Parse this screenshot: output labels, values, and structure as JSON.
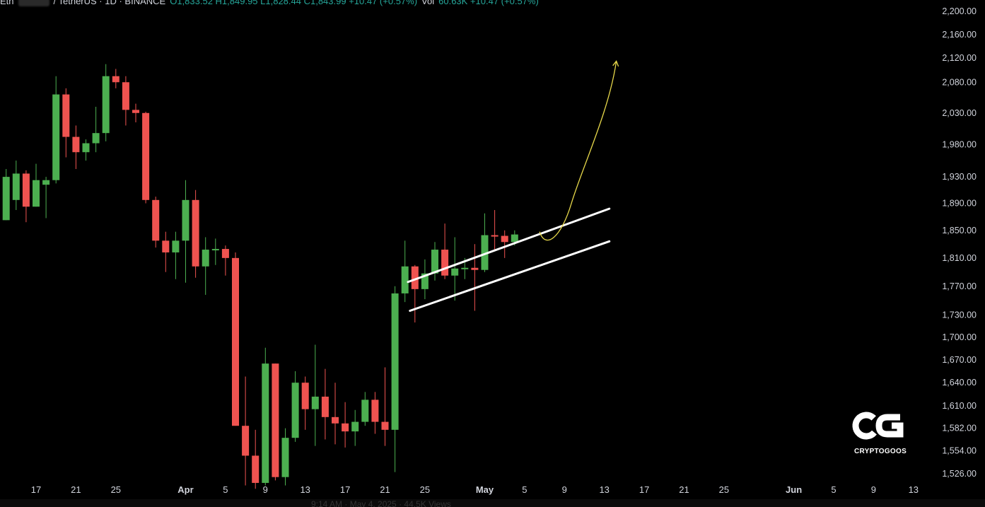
{
  "header": {
    "pair_prefix": "Eth",
    "pair_rest": "/ TetherUS · 1D · BINANCE",
    "ohlc_text": "O1,833.52  H1,849.95  L1,828.44  C1,843.99  +10.47 (+0.57%)",
    "vol_label": "Vol",
    "vol_text": "60.63K  +10.47 (+0.57%)"
  },
  "logo": {
    "brand": "CRYPTOGOOS",
    "mark": "CG"
  },
  "footer": {
    "text": "9:14 AM · May 4, 2025 · 44.5K Views"
  },
  "colors": {
    "up": "#4caf50",
    "down": "#ef5350",
    "channel": "#ffffff",
    "projection": "#e6d74a",
    "axis_text": "#d1d4dc",
    "background": "#000000"
  },
  "chart_data": {
    "type": "candlestick",
    "title": "",
    "xlabel": "",
    "ylabel": "",
    "ylim": [
      1500,
      2210
    ],
    "y_scale": "log",
    "grid": false,
    "y_ticks": [
      "2,200.00",
      "2,160.00",
      "2,120.00",
      "2,080.00",
      "2,030.00",
      "1,980.00",
      "1,930.00",
      "1,890.00",
      "1,850.00",
      "1,810.00",
      "1,770.00",
      "1,730.00",
      "1,700.00",
      "1,670.00",
      "1,640.00",
      "1,610.00",
      "1,582.00",
      "1,554.00",
      "1,526.00"
    ],
    "x_ticks": [
      {
        "label": "17",
        "day": 0
      },
      {
        "label": "21",
        "day": 4
      },
      {
        "label": "25",
        "day": 8
      },
      {
        "label": "Apr",
        "day": 15
      },
      {
        "label": "5",
        "day": 19
      },
      {
        "label": "9",
        "day": 23
      },
      {
        "label": "13",
        "day": 27
      },
      {
        "label": "17",
        "day": 31
      },
      {
        "label": "21",
        "day": 35
      },
      {
        "label": "25",
        "day": 39
      },
      {
        "label": "May",
        "day": 45
      },
      {
        "label": "5",
        "day": 49
      },
      {
        "label": "9",
        "day": 53
      },
      {
        "label": "13",
        "day": 57
      },
      {
        "label": "17",
        "day": 61
      },
      {
        "label": "21",
        "day": 65
      },
      {
        "label": "25",
        "day": 69
      },
      {
        "label": "Jun",
        "day": 76
      },
      {
        "label": "5",
        "day": 80
      },
      {
        "label": "9",
        "day": 84
      },
      {
        "label": "13",
        "day": 88
      }
    ],
    "candles": [
      {
        "day": -3,
        "o": 1865,
        "h": 1942,
        "l": 1865,
        "c": 1930
      },
      {
        "day": -2,
        "o": 1895,
        "h": 1955,
        "l": 1880,
        "c": 1935
      },
      {
        "day": -1,
        "o": 1935,
        "h": 1940,
        "l": 1862,
        "c": 1885
      },
      {
        "day": 0,
        "o": 1885,
        "h": 1950,
        "l": 1885,
        "c": 1925
      },
      {
        "day": 1,
        "o": 1918,
        "h": 1930,
        "l": 1868,
        "c": 1925
      },
      {
        "day": 2,
        "o": 1925,
        "h": 2090,
        "l": 1920,
        "c": 2060
      },
      {
        "day": 3,
        "o": 2060,
        "h": 2070,
        "l": 1960,
        "c": 1992
      },
      {
        "day": 4,
        "o": 1992,
        "h": 2010,
        "l": 1942,
        "c": 1968
      },
      {
        "day": 5,
        "o": 1968,
        "h": 1988,
        "l": 1955,
        "c": 1982
      },
      {
        "day": 6,
        "o": 1982,
        "h": 2040,
        "l": 1968,
        "c": 1998
      },
      {
        "day": 7,
        "o": 1998,
        "h": 2110,
        "l": 1985,
        "c": 2090
      },
      {
        "day": 8,
        "o": 2090,
        "h": 2102,
        "l": 2070,
        "c": 2080
      },
      {
        "day": 9,
        "o": 2080,
        "h": 2090,
        "l": 2010,
        "c": 2035
      },
      {
        "day": 10,
        "o": 2035,
        "h": 2045,
        "l": 2015,
        "c": 2030
      },
      {
        "day": 11,
        "o": 2030,
        "h": 2032,
        "l": 1890,
        "c": 1895
      },
      {
        "day": 12,
        "o": 1895,
        "h": 1900,
        "l": 1825,
        "c": 1835
      },
      {
        "day": 13,
        "o": 1835,
        "h": 1848,
        "l": 1790,
        "c": 1818
      },
      {
        "day": 14,
        "o": 1818,
        "h": 1848,
        "l": 1780,
        "c": 1835
      },
      {
        "day": 15,
        "o": 1835,
        "h": 1925,
        "l": 1775,
        "c": 1895
      },
      {
        "day": 16,
        "o": 1895,
        "h": 1910,
        "l": 1782,
        "c": 1798
      },
      {
        "day": 17,
        "o": 1798,
        "h": 1840,
        "l": 1758,
        "c": 1822
      },
      {
        "day": 18,
        "o": 1822,
        "h": 1838,
        "l": 1800,
        "c": 1823
      },
      {
        "day": 19,
        "o": 1823,
        "h": 1828,
        "l": 1785,
        "c": 1810
      },
      {
        "day": 20,
        "o": 1810,
        "h": 1818,
        "l": 1585,
        "c": 1585
      },
      {
        "day": 21,
        "o": 1585,
        "h": 1648,
        "l": 1512,
        "c": 1548
      },
      {
        "day": 22,
        "o": 1548,
        "h": 1580,
        "l": 1508,
        "c": 1515
      },
      {
        "day": 23,
        "o": 1515,
        "h": 1686,
        "l": 1512,
        "c": 1665
      },
      {
        "day": 24,
        "o": 1665,
        "h": 1665,
        "l": 1518,
        "c": 1522
      },
      {
        "day": 25,
        "o": 1522,
        "h": 1582,
        "l": 1512,
        "c": 1570
      },
      {
        "day": 26,
        "o": 1570,
        "h": 1655,
        "l": 1565,
        "c": 1640
      },
      {
        "day": 27,
        "o": 1640,
        "h": 1648,
        "l": 1580,
        "c": 1606
      },
      {
        "day": 28,
        "o": 1606,
        "h": 1690,
        "l": 1560,
        "c": 1622
      },
      {
        "day": 29,
        "o": 1622,
        "h": 1658,
        "l": 1568,
        "c": 1596
      },
      {
        "day": 30,
        "o": 1596,
        "h": 1640,
        "l": 1562,
        "c": 1588
      },
      {
        "day": 31,
        "o": 1588,
        "h": 1615,
        "l": 1558,
        "c": 1578
      },
      {
        "day": 32,
        "o": 1578,
        "h": 1605,
        "l": 1560,
        "c": 1590
      },
      {
        "day": 33,
        "o": 1590,
        "h": 1628,
        "l": 1585,
        "c": 1618
      },
      {
        "day": 34,
        "o": 1618,
        "h": 1628,
        "l": 1575,
        "c": 1590
      },
      {
        "day": 35,
        "o": 1590,
        "h": 1660,
        "l": 1560,
        "c": 1580
      },
      {
        "day": 36,
        "o": 1580,
        "h": 1770,
        "l": 1528,
        "c": 1760
      },
      {
        "day": 37,
        "o": 1760,
        "h": 1835,
        "l": 1748,
        "c": 1798
      },
      {
        "day": 38,
        "o": 1798,
        "h": 1800,
        "l": 1720,
        "c": 1766
      },
      {
        "day": 39,
        "o": 1766,
        "h": 1808,
        "l": 1752,
        "c": 1788
      },
      {
        "day": 40,
        "o": 1788,
        "h": 1833,
        "l": 1778,
        "c": 1822
      },
      {
        "day": 41,
        "o": 1822,
        "h": 1860,
        "l": 1780,
        "c": 1785
      },
      {
        "day": 42,
        "o": 1785,
        "h": 1840,
        "l": 1750,
        "c": 1795
      },
      {
        "day": 43,
        "o": 1795,
        "h": 1810,
        "l": 1780,
        "c": 1796
      },
      {
        "day": 44,
        "o": 1796,
        "h": 1830,
        "l": 1736,
        "c": 1793
      },
      {
        "day": 45,
        "o": 1793,
        "h": 1875,
        "l": 1790,
        "c": 1843
      },
      {
        "day": 46,
        "o": 1843,
        "h": 1880,
        "l": 1820,
        "c": 1842
      },
      {
        "day": 47,
        "o": 1842,
        "h": 1850,
        "l": 1810,
        "c": 1833
      },
      {
        "day": 48,
        "o": 1833,
        "h": 1850,
        "l": 1828,
        "c": 1844
      }
    ],
    "annotations": {
      "channel_upper": [
        {
          "day": 37.3,
          "price": 1776
        },
        {
          "day": 57.5,
          "price": 1882
        }
      ],
      "channel_lower": [
        {
          "day": 37.5,
          "price": 1736
        },
        {
          "day": 57.5,
          "price": 1834
        }
      ],
      "projection_arrow": {
        "from": {
          "day": 50.5,
          "price": 1848
        },
        "to": {
          "day": 58.2,
          "price": 2115
        }
      }
    }
  }
}
